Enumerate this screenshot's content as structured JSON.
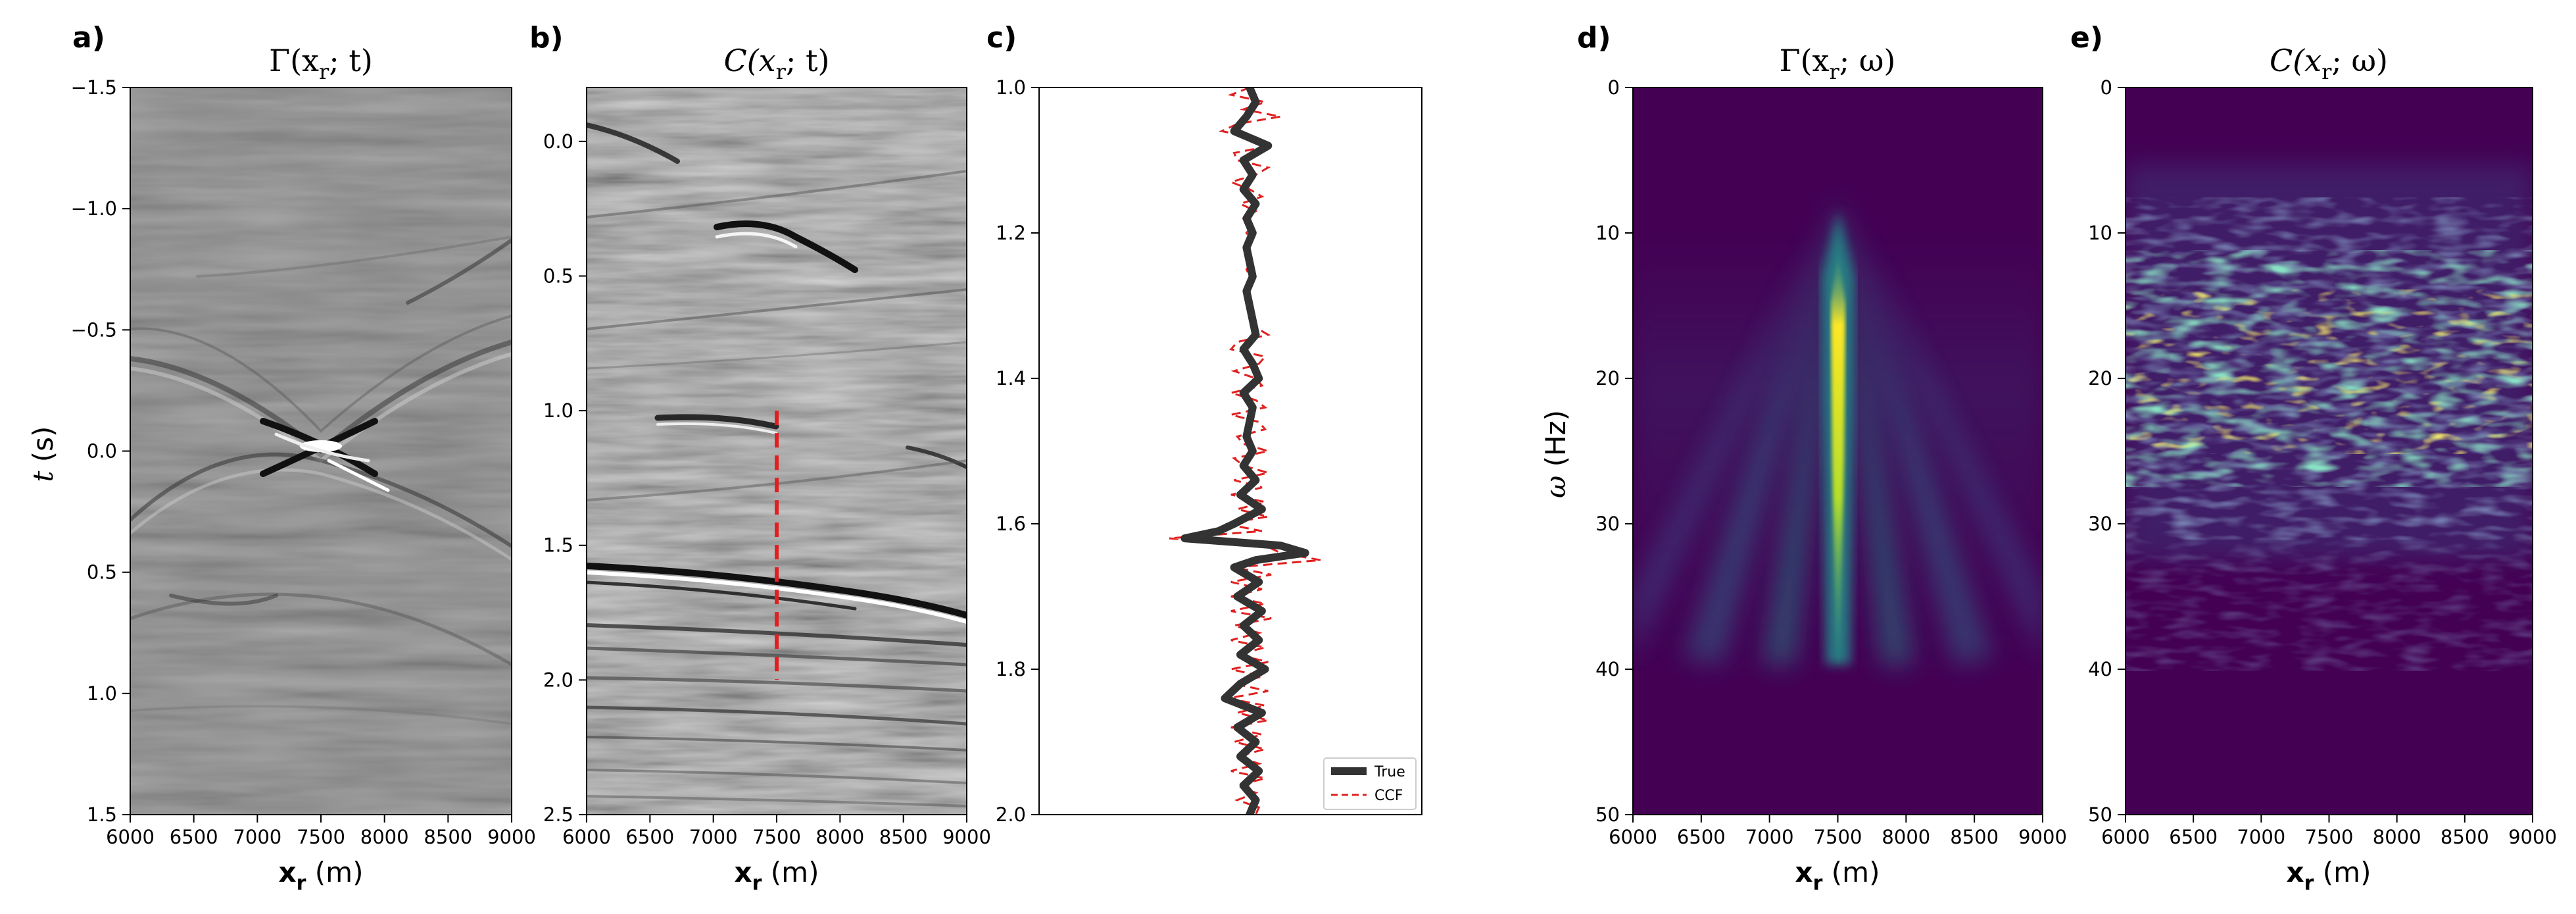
{
  "chart_data": [
    {
      "panel": "a)",
      "type": "heatmap",
      "colormap": "gray",
      "title": "Γ(x′r; t)",
      "title_base": "Γ(x",
      "title_sub": "r",
      "title_rest": "; t)",
      "xlabel": "x′r (m)",
      "xlabel_base": "x",
      "xlabel_sub": "r",
      "xlabel_unit": " (m)",
      "ylabel": "t (s)",
      "ylabel_var": "t",
      "ylabel_unit": " (s)",
      "xlim": [
        6000,
        9000
      ],
      "ylim": [
        -1.5,
        1.5
      ],
      "x_ticks": [
        "6000",
        "6500",
        "7000",
        "7500",
        "8000",
        "8500",
        "9000"
      ],
      "y_ticks": [
        "−1.5",
        "−1.0",
        "−0.5",
        "0.0",
        "0.5",
        "1.0",
        "1.5"
      ]
    },
    {
      "panel": "b)",
      "type": "heatmap",
      "colormap": "gray",
      "title": "C(x′r; t)",
      "title_base": "C(x",
      "title_sub": "r",
      "title_rest": "; t)",
      "xlabel": "x′r (m)",
      "xlabel_base": "x",
      "xlabel_sub": "r",
      "xlabel_unit": " (m)",
      "xlim": [
        6000,
        9000
      ],
      "ylim": [
        -0.2,
        2.5
      ],
      "x_ticks": [
        "6000",
        "6500",
        "7000",
        "7500",
        "8000",
        "8500",
        "9000"
      ],
      "y_ticks": [
        "0.0",
        "0.5",
        "1.0",
        "1.5",
        "2.0",
        "2.5"
      ],
      "trace_marker": {
        "x": 7500,
        "t_start": 1.0,
        "t_end": 2.0,
        "color": "#e02020"
      }
    },
    {
      "panel": "c)",
      "type": "line",
      "ylim": [
        1.0,
        2.0
      ],
      "y_ticks": [
        "1.0",
        "1.2",
        "1.4",
        "1.6",
        "1.8",
        "2.0"
      ],
      "legend": [
        "True",
        "CCF"
      ],
      "legend_position": "bottom-right",
      "series": [
        {
          "name": "True",
          "color": "#333333",
          "t": [
            1.0,
            1.02,
            1.04,
            1.06,
            1.08,
            1.1,
            1.12,
            1.14,
            1.16,
            1.18,
            1.2,
            1.22,
            1.24,
            1.26,
            1.28,
            1.3,
            1.32,
            1.34,
            1.36,
            1.38,
            1.4,
            1.42,
            1.44,
            1.46,
            1.48,
            1.5,
            1.52,
            1.54,
            1.56,
            1.58,
            1.6,
            1.61,
            1.62,
            1.63,
            1.64,
            1.65,
            1.66,
            1.68,
            1.7,
            1.72,
            1.74,
            1.76,
            1.78,
            1.8,
            1.82,
            1.84,
            1.86,
            1.88,
            1.9,
            1.92,
            1.94,
            1.96,
            1.98,
            2.0
          ],
          "values": [
            0.0,
            0.02,
            -0.01,
            -0.05,
            0.06,
            -0.02,
            0.01,
            -0.02,
            0.02,
            -0.01,
            0.01,
            -0.01,
            0.0,
            0.01,
            -0.01,
            0.0,
            0.01,
            0.02,
            -0.02,
            0.01,
            0.03,
            -0.02,
            0.01,
            0.0,
            -0.01,
            0.01,
            -0.02,
            0.02,
            -0.03,
            0.04,
            -0.05,
            -0.1,
            -0.21,
            0.1,
            0.18,
            0.02,
            -0.05,
            0.03,
            -0.04,
            0.04,
            -0.02,
            0.03,
            -0.03,
            0.05,
            -0.03,
            -0.08,
            0.04,
            -0.04,
            0.02,
            -0.03,
            0.03,
            -0.02,
            0.02,
            0.0
          ]
        },
        {
          "name": "CCF",
          "color": "#e02020",
          "t": [
            1.0,
            1.01,
            1.02,
            1.03,
            1.04,
            1.05,
            1.06,
            1.07,
            1.08,
            1.09,
            1.1,
            1.11,
            1.12,
            1.13,
            1.14,
            1.15,
            1.16,
            1.17,
            1.18,
            1.19,
            1.2,
            1.21,
            1.22,
            1.23,
            1.24,
            1.25,
            1.26,
            1.27,
            1.28,
            1.29,
            1.3,
            1.31,
            1.32,
            1.33,
            1.34,
            1.35,
            1.36,
            1.37,
            1.38,
            1.39,
            1.4,
            1.41,
            1.42,
            1.43,
            1.44,
            1.45,
            1.46,
            1.47,
            1.48,
            1.49,
            1.5,
            1.51,
            1.52,
            1.53,
            1.54,
            1.55,
            1.56,
            1.57,
            1.58,
            1.59,
            1.6,
            1.61,
            1.62,
            1.63,
            1.64,
            1.65,
            1.66,
            1.67,
            1.68,
            1.69,
            1.7,
            1.71,
            1.72,
            1.73,
            1.74,
            1.75,
            1.76,
            1.77,
            1.78,
            1.79,
            1.8,
            1.81,
            1.82,
            1.83,
            1.84,
            1.85,
            1.86,
            1.87,
            1.88,
            1.89,
            1.9,
            1.91,
            1.92,
            1.93,
            1.94,
            1.95,
            1.96,
            1.97,
            1.98,
            1.99,
            2.0
          ],
          "values": [
            0.0,
            -0.06,
            0.05,
            -0.02,
            0.1,
            -0.04,
            -0.09,
            0.03,
            0.07,
            -0.05,
            -0.04,
            0.06,
            0.02,
            -0.06,
            0.0,
            0.04,
            -0.03,
            0.02,
            -0.02,
            0.01,
            -0.01,
            0.01,
            0.0,
            0.0,
            0.01,
            -0.01,
            0.0,
            0.0,
            0.0,
            0.0,
            0.0,
            0.0,
            0.01,
            0.02,
            0.06,
            -0.04,
            -0.06,
            0.05,
            0.03,
            -0.05,
            0.02,
            0.04,
            -0.06,
            0.02,
            0.05,
            -0.06,
            0.03,
            0.05,
            -0.04,
            -0.02,
            0.06,
            -0.05,
            -0.02,
            0.06,
            -0.05,
            0.04,
            -0.06,
            0.05,
            -0.04,
            0.06,
            -0.08,
            0.04,
            -0.26,
            0.05,
            0.1,
            0.23,
            -0.05,
            0.07,
            -0.06,
            0.04,
            -0.06,
            0.05,
            -0.06,
            0.07,
            -0.05,
            0.03,
            -0.06,
            0.05,
            -0.04,
            0.06,
            -0.06,
            0.04,
            -0.05,
            0.06,
            -0.07,
            0.05,
            -0.04,
            0.06,
            -0.06,
            0.04,
            -0.05,
            0.05,
            -0.04,
            0.03,
            -0.06,
            0.05,
            -0.04,
            0.02,
            -0.04,
            0.03,
            0.02
          ]
        }
      ]
    },
    {
      "panel": "d)",
      "type": "heatmap",
      "colormap": "viridis",
      "title": "Γ(x′r; ω)",
      "title_base": "Γ(x",
      "title_sub": "r",
      "title_rest": "; ω)",
      "xlabel": "x′r (m)",
      "xlabel_base": "x",
      "xlabel_sub": "r",
      "xlabel_unit": " (m)",
      "ylabel": "ω (Hz)",
      "ylabel_var": "ω",
      "ylabel_unit": " (Hz)",
      "xlim": [
        6000,
        9000
      ],
      "ylim": [
        0,
        50
      ],
      "x_ticks": [
        "6000",
        "6500",
        "7000",
        "7500",
        "8000",
        "8500",
        "9000"
      ],
      "y_ticks": [
        "0",
        "10",
        "20",
        "30",
        "40",
        "50"
      ]
    },
    {
      "panel": "e)",
      "type": "heatmap",
      "colormap": "viridis",
      "title": "C(x′r; ω)",
      "title_base": "C(x",
      "title_sub": "r",
      "title_rest": "; ω)",
      "xlabel": "x′r (m)",
      "xlabel_base": "x",
      "xlabel_sub": "r",
      "xlabel_unit": " (m)",
      "xlim": [
        6000,
        9000
      ],
      "ylim": [
        0,
        50
      ],
      "x_ticks": [
        "6000",
        "6500",
        "7000",
        "7500",
        "8000",
        "8500",
        "9000"
      ],
      "y_ticks": [
        "0",
        "10",
        "20",
        "30",
        "40",
        "50"
      ]
    }
  ],
  "colors": {
    "viridis_dark": "#440154",
    "viridis_bright": "#fde725",
    "seismic_gray": "#7f7f7f",
    "ccf_red": "#e02020",
    "true_dark": "#333333"
  }
}
